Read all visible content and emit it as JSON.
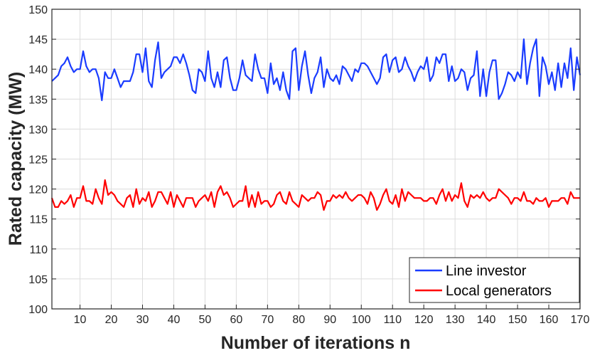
{
  "chart_data": {
    "type": "line",
    "title": "",
    "xlabel": "Number of iterations n",
    "ylabel": "Rated capacity (MW)",
    "xlim": [
      1,
      170
    ],
    "ylim": [
      100,
      150
    ],
    "xticks": [
      10,
      20,
      30,
      40,
      50,
      60,
      70,
      80,
      90,
      100,
      110,
      120,
      130,
      140,
      150,
      160,
      170
    ],
    "yticks": [
      100,
      105,
      110,
      115,
      120,
      125,
      130,
      135,
      140,
      145,
      150
    ],
    "grid": true,
    "legend_position": "bottom-right",
    "series": [
      {
        "name": "Line investor",
        "color": "#1a3cff",
        "values": [
          138,
          138.5,
          139,
          140.5,
          141,
          142,
          140.5,
          139.5,
          140,
          140,
          143,
          140.5,
          139.5,
          140,
          140,
          138.5,
          134.8,
          139.5,
          138.5,
          138.5,
          140,
          138.5,
          137,
          138,
          138,
          138,
          139.5,
          142.5,
          142.5,
          139.5,
          143.5,
          138,
          137,
          141.5,
          144.5,
          138.5,
          139.5,
          140,
          140.5,
          142,
          142,
          141,
          142.5,
          141,
          139,
          136.5,
          136,
          140,
          139.5,
          138,
          143,
          138.5,
          137,
          139.5,
          137,
          141.5,
          142,
          138.5,
          136.5,
          136.5,
          138.5,
          141.5,
          139,
          138.5,
          138,
          142.5,
          140,
          138.5,
          138.5,
          136,
          141,
          137.5,
          138.5,
          136.5,
          139.5,
          136.5,
          135,
          143,
          143.5,
          136.5,
          140.5,
          143,
          139,
          136,
          138.5,
          139.5,
          142,
          137,
          140,
          138.5,
          138,
          139,
          137.5,
          140.5,
          140,
          139,
          138,
          140,
          139.5,
          141,
          141,
          140.5,
          139.5,
          138.5,
          137.5,
          138.5,
          142,
          142.5,
          139.5,
          141.5,
          142,
          139.5,
          140,
          142,
          140.5,
          139.5,
          138,
          139.5,
          140.5,
          140,
          142,
          138,
          139,
          142,
          141,
          142.5,
          142.5,
          138,
          140.5,
          138,
          138.5,
          140,
          139.5,
          136.5,
          138.5,
          139,
          143,
          135.5,
          140,
          135.5,
          139.5,
          141.5,
          141.5,
          135,
          136,
          137.5,
          139.5,
          139,
          138,
          139.5,
          138.5,
          145,
          137.5,
          141,
          143.5,
          145,
          135.5,
          142,
          140.5,
          137.5,
          139.5,
          136.5,
          141,
          137,
          141,
          138.5,
          143.5,
          136.5,
          142,
          139
        ]
      },
      {
        "name": "Local generators",
        "color": "#ff0000",
        "values": [
          118.5,
          117,
          117,
          118,
          117.5,
          118,
          119,
          117,
          118.5,
          118.5,
          120.5,
          118,
          118,
          117.5,
          120,
          118.5,
          117.5,
          121.5,
          119,
          119.5,
          119,
          118,
          117.5,
          117,
          118.5,
          119,
          117,
          120,
          117.5,
          118.5,
          118,
          119.5,
          117,
          118,
          119.5,
          119.5,
          118.5,
          117.5,
          119.5,
          117,
          119,
          118,
          117,
          118.5,
          118.5,
          118.5,
          117,
          118,
          118.5,
          119,
          118,
          119.5,
          117,
          119.5,
          120.5,
          119,
          119.5,
          118.5,
          117,
          117.5,
          118,
          118,
          120.5,
          117,
          119,
          117,
          119.5,
          117.5,
          118,
          118,
          117,
          117.5,
          119,
          119.5,
          118,
          117.5,
          119.5,
          118,
          117.5,
          117,
          119,
          118.5,
          118,
          118.5,
          118.5,
          119.5,
          119,
          116.5,
          118,
          118,
          119,
          118.5,
          119,
          118.5,
          119.5,
          118.5,
          118,
          118.5,
          119,
          119,
          118.5,
          117.5,
          119.5,
          118.5,
          116.5,
          117.5,
          119,
          120,
          118,
          117.5,
          119,
          117,
          120,
          118,
          119.5,
          119,
          118.5,
          118.5,
          118.5,
          118,
          118,
          118.5,
          118.5,
          117.5,
          119,
          120,
          118,
          119.5,
          118,
          119,
          118.5,
          121,
          118,
          117,
          119,
          118.5,
          119,
          118.5,
          119.5,
          118.5,
          118,
          118.5,
          118.5,
          120,
          119.5,
          119,
          118.5,
          117.5,
          118.5,
          118.5,
          118,
          119.5,
          118,
          118,
          117.5,
          118.5,
          118,
          118,
          118.5,
          117,
          118,
          118,
          118,
          118.5,
          118.5,
          117.5,
          119.5,
          118.5,
          118.5,
          118.5
        ]
      }
    ]
  }
}
